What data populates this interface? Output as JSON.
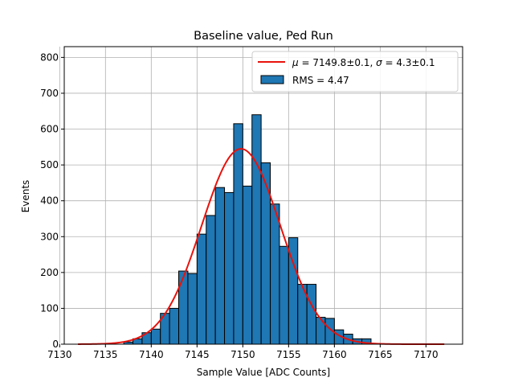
{
  "chart_data": {
    "type": "bar",
    "title": "Baseline value, Ped Run",
    "xlabel": "Sample Value [ADC Counts]",
    "ylabel": "Events",
    "xlim": [
      7130.5,
      7174
    ],
    "ylim": [
      0,
      830
    ],
    "xticks": [
      7130,
      7135,
      7140,
      7145,
      7150,
      7155,
      7160,
      7165,
      7170
    ],
    "yticks": [
      0,
      100,
      200,
      300,
      400,
      500,
      600,
      700,
      800
    ],
    "grid": true,
    "legend_position": "top-right",
    "colors": {
      "bar_fill": "#1f77b4",
      "bar_edge": "#000000",
      "fit_line": "#e8120c",
      "grid": "#b0b0b0"
    },
    "histogram": {
      "name": "RMS = 4.47",
      "bin_width": 1,
      "bins": [
        {
          "x": 7137.5,
          "count": 6
        },
        {
          "x": 7138.5,
          "count": 15
        },
        {
          "x": 7139.5,
          "count": 32
        },
        {
          "x": 7140.5,
          "count": 42
        },
        {
          "x": 7141.5,
          "count": 86
        },
        {
          "x": 7142.5,
          "count": 100
        },
        {
          "x": 7143.5,
          "count": 204
        },
        {
          "x": 7144.5,
          "count": 197
        },
        {
          "x": 7145.5,
          "count": 307
        },
        {
          "x": 7146.5,
          "count": 359
        },
        {
          "x": 7147.5,
          "count": 437
        },
        {
          "x": 7148.5,
          "count": 423
        },
        {
          "x": 7149.5,
          "count": 615
        },
        {
          "x": 7150.5,
          "count": 441
        },
        {
          "x": 7151.5,
          "count": 640
        },
        {
          "x": 7152.5,
          "count": 506
        },
        {
          "x": 7153.5,
          "count": 391
        },
        {
          "x": 7154.5,
          "count": 273
        },
        {
          "x": 7155.5,
          "count": 297
        },
        {
          "x": 7156.5,
          "count": 167
        },
        {
          "x": 7157.5,
          "count": 167
        },
        {
          "x": 7158.5,
          "count": 75
        },
        {
          "x": 7159.5,
          "count": 72
        },
        {
          "x": 7160.5,
          "count": 40
        },
        {
          "x": 7161.5,
          "count": 28
        },
        {
          "x": 7162.5,
          "count": 15
        },
        {
          "x": 7163.5,
          "count": 15
        }
      ]
    },
    "fit": {
      "name_html": "μ = 7149.8±0.1, σ = 4.3±0.1",
      "label_prefix_mu": "μ",
      "label_mu_value": " = 7149.8±0.1, ",
      "label_prefix_sigma": "σ",
      "label_sigma_value": " = 4.3±0.1",
      "mean": 7149.8,
      "sigma": 4.3,
      "amplitude": 545,
      "x_range": [
        7132,
        7172
      ]
    },
    "legend": {
      "histogram_label": "RMS = 4.47"
    }
  }
}
